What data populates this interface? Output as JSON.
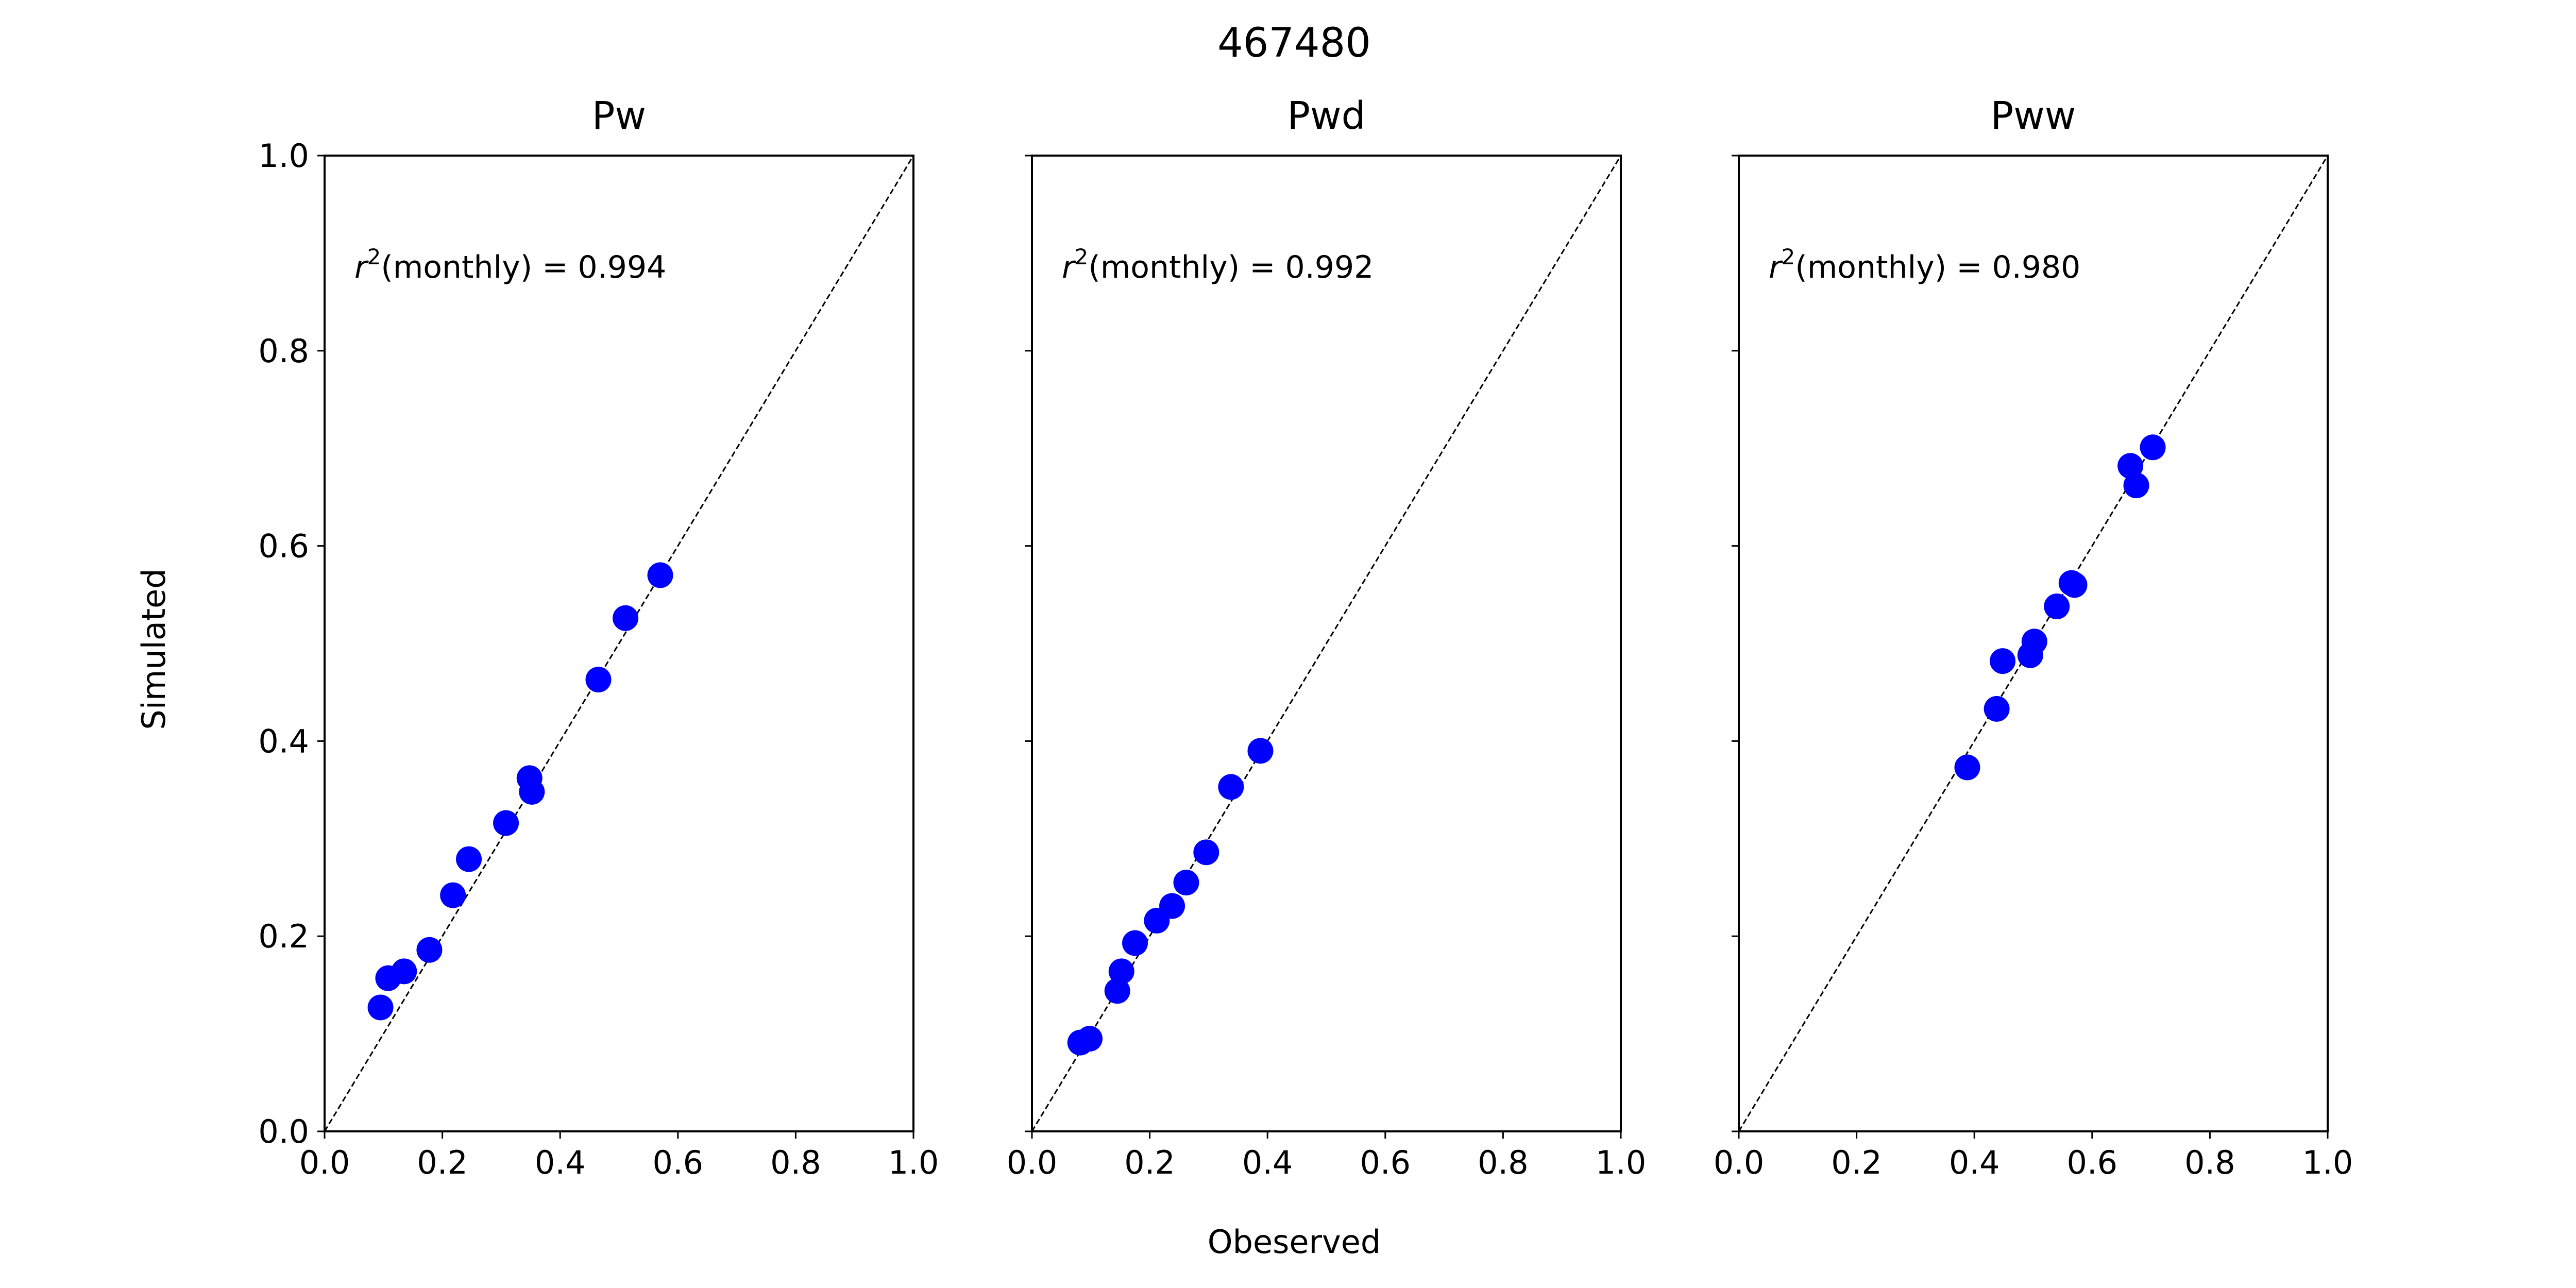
{
  "figure": {
    "suptitle": "467480",
    "xlabel": "Obeserved",
    "ylabel": "Simulated"
  },
  "style": {
    "marker_color": "#0000ff",
    "axis_color": "#000000",
    "reference_line": "dashed 1:1 diagonal"
  },
  "chart_data": [
    {
      "type": "scatter",
      "title": "Pw",
      "xlim": [
        0.0,
        1.0
      ],
      "ylim": [
        0.0,
        1.0
      ],
      "xticks": [
        "0.0",
        "0.2",
        "0.4",
        "0.6",
        "0.8",
        "1.0"
      ],
      "yticks": [
        "0.0",
        "0.2",
        "0.4",
        "0.6",
        "0.8",
        "1.0"
      ],
      "show_yticklabels": true,
      "annotation_prefix": "r",
      "annotation_sup": "2",
      "annotation_text": "(monthly) = 0.994",
      "points": [
        {
          "x": 0.095,
          "y": 0.127
        },
        {
          "x": 0.108,
          "y": 0.157
        },
        {
          "x": 0.135,
          "y": 0.164
        },
        {
          "x": 0.178,
          "y": 0.186
        },
        {
          "x": 0.218,
          "y": 0.242
        },
        {
          "x": 0.245,
          "y": 0.279
        },
        {
          "x": 0.308,
          "y": 0.316
        },
        {
          "x": 0.348,
          "y": 0.362
        },
        {
          "x": 0.352,
          "y": 0.348
        },
        {
          "x": 0.465,
          "y": 0.463
        },
        {
          "x": 0.511,
          "y": 0.526
        },
        {
          "x": 0.57,
          "y": 0.57
        }
      ]
    },
    {
      "type": "scatter",
      "title": "Pwd",
      "xlim": [
        0.0,
        1.0
      ],
      "ylim": [
        0.0,
        1.0
      ],
      "xticks": [
        "0.0",
        "0.2",
        "0.4",
        "0.6",
        "0.8",
        "1.0"
      ],
      "yticks": [
        "0.0",
        "0.2",
        "0.4",
        "0.6",
        "0.8",
        "1.0"
      ],
      "show_yticklabels": false,
      "annotation_prefix": "r",
      "annotation_sup": "2",
      "annotation_text": "(monthly) = 0.992",
      "points": [
        {
          "x": 0.082,
          "y": 0.091
        },
        {
          "x": 0.098,
          "y": 0.095
        },
        {
          "x": 0.145,
          "y": 0.144
        },
        {
          "x": 0.152,
          "y": 0.164
        },
        {
          "x": 0.175,
          "y": 0.193
        },
        {
          "x": 0.212,
          "y": 0.216
        },
        {
          "x": 0.238,
          "y": 0.231
        },
        {
          "x": 0.262,
          "y": 0.255
        },
        {
          "x": 0.296,
          "y": 0.286
        },
        {
          "x": 0.338,
          "y": 0.353
        },
        {
          "x": 0.388,
          "y": 0.39
        }
      ]
    },
    {
      "type": "scatter",
      "title": "Pww",
      "xlim": [
        0.0,
        1.0
      ],
      "ylim": [
        0.0,
        1.0
      ],
      "xticks": [
        "0.0",
        "0.2",
        "0.4",
        "0.6",
        "0.8",
        "1.0"
      ],
      "yticks": [
        "0.0",
        "0.2",
        "0.4",
        "0.6",
        "0.8",
        "1.0"
      ],
      "show_yticklabels": false,
      "annotation_prefix": "r",
      "annotation_sup": "2",
      "annotation_text": "(monthly) = 0.980",
      "points": [
        {
          "x": 0.388,
          "y": 0.373
        },
        {
          "x": 0.438,
          "y": 0.433
        },
        {
          "x": 0.448,
          "y": 0.482
        },
        {
          "x": 0.495,
          "y": 0.488
        },
        {
          "x": 0.502,
          "y": 0.502
        },
        {
          "x": 0.54,
          "y": 0.538
        },
        {
          "x": 0.565,
          "y": 0.562
        },
        {
          "x": 0.57,
          "y": 0.56
        },
        {
          "x": 0.665,
          "y": 0.682
        },
        {
          "x": 0.675,
          "y": 0.662
        },
        {
          "x": 0.703,
          "y": 0.701
        }
      ]
    }
  ]
}
